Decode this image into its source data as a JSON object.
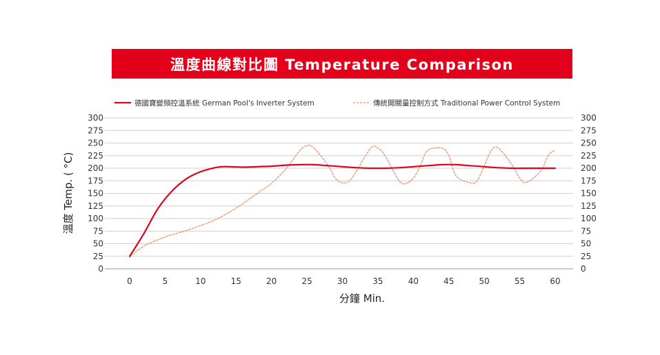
{
  "chart_data": {
    "type": "line",
    "title": "溫度曲線對比圖 Temperature Comparison",
    "xlabel": "分鐘  Min.",
    "ylabel": "溫度 Temp. ( °C)",
    "xlim": [
      0,
      60
    ],
    "ylim": [
      0,
      300
    ],
    "x_ticks": [
      0,
      5,
      10,
      15,
      20,
      25,
      30,
      35,
      40,
      45,
      50,
      55,
      60
    ],
    "y_ticks": [
      0,
      25,
      50,
      75,
      100,
      125,
      150,
      175,
      200,
      225,
      250,
      275,
      300
    ],
    "grid": true,
    "legend_position": "top",
    "series": [
      {
        "name": "德國寶變頻控溫系統 German Pool's Inverter System",
        "style": "solid",
        "color": "#e2001a",
        "x": [
          0,
          2,
          4,
          6,
          8,
          10,
          12,
          13,
          14,
          16,
          18,
          20,
          22,
          24,
          26,
          28,
          30,
          32,
          34,
          36,
          38,
          40,
          42,
          44,
          46,
          48,
          50,
          52,
          54,
          56,
          58,
          60
        ],
        "values": [
          25,
          70,
          120,
          155,
          179,
          193,
          201,
          203,
          203,
          202,
          203,
          204,
          206,
          207,
          207,
          205,
          203,
          201,
          200,
          200,
          201,
          203,
          205,
          207,
          207,
          205,
          203,
          201,
          200,
          200,
          200,
          200
        ]
      },
      {
        "name": "傳統開關量控制方式  Traditional Power Control System",
        "style": "dashed",
        "color": "#ee8a63",
        "x": [
          0,
          2,
          4,
          6,
          8,
          10,
          12,
          14,
          16,
          18,
          20,
          22,
          24,
          25,
          26,
          28,
          29,
          30,
          31,
          32,
          34,
          35,
          36,
          38,
          39,
          40,
          41,
          42,
          44,
          45,
          46,
          48,
          49,
          50,
          51,
          52,
          54,
          55,
          56,
          58,
          59,
          60
        ],
        "values": [
          25,
          45,
          58,
          68,
          76,
          86,
          97,
          112,
          130,
          150,
          170,
          198,
          235,
          245,
          240,
          205,
          180,
          171,
          175,
          195,
          240,
          240,
          225,
          175,
          170,
          180,
          205,
          235,
          240,
          225,
          185,
          171,
          175,
          205,
          235,
          240,
          205,
          180,
          172,
          195,
          225,
          236
        ]
      }
    ]
  }
}
